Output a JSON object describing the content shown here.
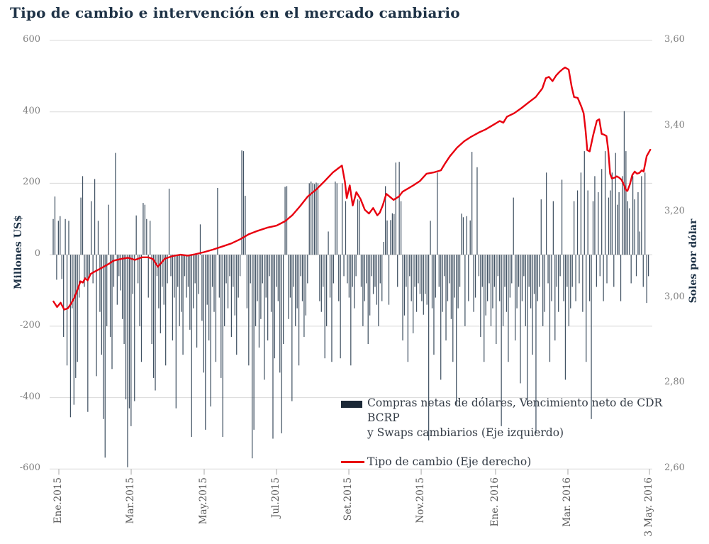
{
  "title": "Tipo de cambio e intervención en el mercado cambiario",
  "colors": {
    "title": "#1e3246",
    "bar": "#2e4053",
    "legend_bar_swatch": "#1b2836",
    "line": "#e8000f",
    "gridline": "#d9d9d9",
    "tick_mark": "#a6a6a6",
    "y_tick_text": "#7f7f7f",
    "x_tick_text": "#595959",
    "legend_text": "#333b45"
  },
  "left_axis": {
    "title": "Millones  US$",
    "ticks": [
      {
        "label": "600",
        "value": 600
      },
      {
        "label": "400",
        "value": 400
      },
      {
        "label": "200",
        "value": 200
      },
      {
        "label": "0",
        "value": 0
      },
      {
        "label": "-200",
        "value": -200
      },
      {
        "label": "-400",
        "value": -400
      },
      {
        "label": "-600",
        "value": -600
      }
    ]
  },
  "right_axis": {
    "title": "Soles por dólar",
    "ticks": [
      {
        "label": "3,60",
        "value": 3.6
      },
      {
        "label": "3,40",
        "value": 3.4
      },
      {
        "label": "3,20",
        "value": 3.2
      },
      {
        "label": "3,00",
        "value": 3.0
      },
      {
        "label": "2,80",
        "value": 2.8
      },
      {
        "label": "2,60",
        "value": 2.6
      }
    ]
  },
  "x_axis": {
    "ticks": [
      {
        "label": "Ene.2015",
        "f": 0.013
      },
      {
        "label": "Mar.2015",
        "f": 0.1336
      },
      {
        "label": "May.2015",
        "f": 0.2553
      },
      {
        "label": "Jul.2015",
        "f": 0.3759
      },
      {
        "label": "Set.2015",
        "f": 0.4965
      },
      {
        "label": "Nov.2015",
        "f": 0.6171
      },
      {
        "label": "Ene. 2016",
        "f": 0.7411
      },
      {
        "label": "Mar. 2016",
        "f": 0.8617
      },
      {
        "label": "3 May. 2016",
        "f": 0.9977
      }
    ]
  },
  "legend": [
    {
      "type": "bar",
      "lines": [
        "Compras netas de dólares, Vencimiento neto de CDR BCRP",
        "y Swaps cambiarios (Eje izquierdo)"
      ]
    },
    {
      "type": "line",
      "lines": [
        "Tipo de cambio (Eje derecho)"
      ]
    }
  ],
  "chart_data": {
    "type": "bar+line",
    "title": "Tipo de cambio e intervención en el mercado cambiario",
    "left_ylim": [
      -600,
      600
    ],
    "right_ylim": [
      2.6,
      3.6
    ],
    "grid": "horizontal, every 200 (left axis)",
    "legend_position": "inside bottom-right",
    "x_range": "Ene.2015 to 3 May. 2016 (daily)",
    "bar_series": {
      "name": "Compras netas de dólares, Vencimiento neto de CDR BCRP y Swaps cambiarios (Eje izquierdo)",
      "axis": "left",
      "unit": "Millones US$",
      "values": [
        100,
        163,
        -70,
        95,
        108,
        -68,
        -230,
        100,
        -310,
        95,
        -455,
        -150,
        -420,
        -345,
        -300,
        -120,
        160,
        220,
        -90,
        -65,
        -440,
        -60,
        150,
        -80,
        212,
        -340,
        95,
        -160,
        -280,
        -460,
        -568,
        -200,
        140,
        -230,
        -320,
        -90,
        285,
        -140,
        -60,
        -100,
        -180,
        -250,
        -405,
        -595,
        -430,
        -480,
        -110,
        -410,
        110,
        -80,
        -200,
        -300,
        145,
        140,
        100,
        -120,
        95,
        -250,
        -345,
        -380,
        -60,
        -150,
        -220,
        -90,
        -140,
        -310,
        -80,
        185,
        -60,
        -240,
        -120,
        -430,
        -90,
        -200,
        -160,
        -280,
        -60,
        -120,
        -90,
        -210,
        -510,
        -150,
        -80,
        -260,
        -110,
        85,
        -185,
        -330,
        -490,
        -140,
        -240,
        -425,
        -90,
        -160,
        -300,
        187,
        -120,
        -345,
        -510,
        -200,
        -80,
        -150,
        -60,
        -230,
        -90,
        -170,
        -280,
        -120,
        -60,
        292,
        290,
        165,
        -150,
        -310,
        -80,
        -570,
        -490,
        -200,
        -130,
        -260,
        -180,
        -80,
        -350,
        -120,
        -240,
        -60,
        -160,
        -515,
        -290,
        -90,
        -130,
        -330,
        -500,
        -250,
        190,
        192,
        -180,
        -120,
        -410,
        -90,
        -200,
        -150,
        -310,
        -60,
        -130,
        -230,
        -170,
        -80,
        200,
        205,
        200,
        198,
        202,
        200,
        -130,
        -160,
        -90,
        -290,
        -200,
        65,
        -120,
        -300,
        -80,
        205,
        200,
        -130,
        -290,
        200,
        -60,
        150,
        -80,
        -120,
        -310,
        -90,
        -150,
        -60,
        155,
        152,
        -90,
        -200,
        -130,
        -80,
        -250,
        -170,
        -60,
        -110,
        -90,
        -140,
        -200,
        -80,
        -130,
        36,
        192,
        96,
        -140,
        97,
        116,
        114,
        258,
        -90,
        260,
        150,
        -240,
        -170,
        -90,
        -300,
        -60,
        -130,
        -220,
        -90,
        -160,
        -80,
        -110,
        -130,
        -168,
        -110,
        -140,
        -520,
        95,
        -150,
        -280,
        -120,
        230,
        -90,
        -350,
        -160,
        -60,
        -240,
        -130,
        -80,
        -180,
        -300,
        -120,
        -420,
        -150,
        -90,
        115,
        105,
        -200,
        108,
        -130,
        96,
        288,
        -160,
        -120,
        245,
        -60,
        -230,
        -90,
        -300,
        -170,
        -130,
        -80,
        -200,
        -150,
        -90,
        -250,
        -60,
        -130,
        -480,
        -200,
        -90,
        -160,
        -300,
        -120,
        -80,
        160,
        -240,
        -150,
        -90,
        -360,
        -130,
        -60,
        -200,
        -420,
        -90,
        -150,
        -280,
        -110,
        -500,
        -130,
        -90,
        155,
        -200,
        -160,
        230,
        -80,
        -300,
        -130,
        150,
        -240,
        -90,
        -160,
        -60,
        210,
        -130,
        -350,
        -90,
        -200,
        -150,
        -90,
        150,
        -130,
        180,
        -80,
        230,
        -160,
        290,
        -300,
        180,
        -130,
        -460,
        150,
        220,
        -90,
        175,
        -60,
        240,
        -130,
        290,
        -80,
        160,
        180,
        230,
        -90,
        285,
        140,
        175,
        -130,
        220,
        402,
        290,
        150,
        130,
        -80,
        220,
        155,
        -60,
        175,
        65,
        220,
        -90,
        230,
        -135,
        -60
      ]
    },
    "line_series": {
      "name": "Tipo de cambio (Eje derecho)",
      "axis": "right",
      "unit": "Soles por dólar",
      "points": [
        [
          0.004,
          2.991
        ],
        [
          0.01,
          2.978
        ],
        [
          0.016,
          2.988
        ],
        [
          0.022,
          2.972
        ],
        [
          0.028,
          2.975
        ],
        [
          0.033,
          2.985
        ],
        [
          0.039,
          3.0
        ],
        [
          0.045,
          3.022
        ],
        [
          0.049,
          3.038
        ],
        [
          0.053,
          3.035
        ],
        [
          0.057,
          3.045
        ],
        [
          0.061,
          3.04
        ],
        [
          0.066,
          3.055
        ],
        [
          0.072,
          3.06
        ],
        [
          0.08,
          3.066
        ],
        [
          0.088,
          3.072
        ],
        [
          0.098,
          3.08
        ],
        [
          0.104,
          3.086
        ],
        [
          0.116,
          3.09
        ],
        [
          0.128,
          3.093
        ],
        [
          0.14,
          3.088
        ],
        [
          0.152,
          3.094
        ],
        [
          0.162,
          3.094
        ],
        [
          0.17,
          3.09
        ],
        [
          0.178,
          3.072
        ],
        [
          0.19,
          3.091
        ],
        [
          0.203,
          3.097
        ],
        [
          0.216,
          3.1
        ],
        [
          0.228,
          3.098
        ],
        [
          0.24,
          3.101
        ],
        [
          0.255,
          3.106
        ],
        [
          0.27,
          3.112
        ],
        [
          0.285,
          3.119
        ],
        [
          0.3,
          3.126
        ],
        [
          0.315,
          3.136
        ],
        [
          0.33,
          3.148
        ],
        [
          0.345,
          3.156
        ],
        [
          0.36,
          3.163
        ],
        [
          0.376,
          3.168
        ],
        [
          0.39,
          3.178
        ],
        [
          0.402,
          3.192
        ],
        [
          0.415,
          3.213
        ],
        [
          0.428,
          3.236
        ],
        [
          0.442,
          3.252
        ],
        [
          0.455,
          3.27
        ],
        [
          0.47,
          3.292
        ],
        [
          0.48,
          3.303
        ],
        [
          0.485,
          3.308
        ],
        [
          0.49,
          3.27
        ],
        [
          0.493,
          3.232
        ],
        [
          0.498,
          3.262
        ],
        [
          0.503,
          3.215
        ],
        [
          0.509,
          3.246
        ],
        [
          0.516,
          3.23
        ],
        [
          0.523,
          3.205
        ],
        [
          0.53,
          3.196
        ],
        [
          0.537,
          3.209
        ],
        [
          0.544,
          3.192
        ],
        [
          0.548,
          3.198
        ],
        [
          0.553,
          3.215
        ],
        [
          0.559,
          3.242
        ],
        [
          0.571,
          3.228
        ],
        [
          0.58,
          3.236
        ],
        [
          0.586,
          3.247
        ],
        [
          0.603,
          3.261
        ],
        [
          0.615,
          3.272
        ],
        [
          0.626,
          3.289
        ],
        [
          0.638,
          3.292
        ],
        [
          0.65,
          3.297
        ],
        [
          0.657,
          3.313
        ],
        [
          0.665,
          3.33
        ],
        [
          0.677,
          3.35
        ],
        [
          0.689,
          3.365
        ],
        [
          0.7,
          3.375
        ],
        [
          0.713,
          3.385
        ],
        [
          0.724,
          3.392
        ],
        [
          0.736,
          3.402
        ],
        [
          0.748,
          3.412
        ],
        [
          0.754,
          3.408
        ],
        [
          0.76,
          3.422
        ],
        [
          0.772,
          3.43
        ],
        [
          0.784,
          3.442
        ],
        [
          0.796,
          3.455
        ],
        [
          0.808,
          3.468
        ],
        [
          0.819,
          3.488
        ],
        [
          0.825,
          3.512
        ],
        [
          0.83,
          3.515
        ],
        [
          0.836,
          3.505
        ],
        [
          0.842,
          3.518
        ],
        [
          0.848,
          3.527
        ],
        [
          0.853,
          3.533
        ],
        [
          0.857,
          3.537
        ],
        [
          0.863,
          3.532
        ],
        [
          0.868,
          3.492
        ],
        [
          0.872,
          3.468
        ],
        [
          0.878,
          3.466
        ],
        [
          0.884,
          3.446
        ],
        [
          0.888,
          3.43
        ],
        [
          0.891,
          3.392
        ],
        [
          0.894,
          3.344
        ],
        [
          0.898,
          3.341
        ],
        [
          0.904,
          3.38
        ],
        [
          0.91,
          3.413
        ],
        [
          0.914,
          3.416
        ],
        [
          0.918,
          3.382
        ],
        [
          0.922,
          3.38
        ],
        [
          0.926,
          3.377
        ],
        [
          0.929,
          3.344
        ],
        [
          0.932,
          3.289
        ],
        [
          0.935,
          3.278
        ],
        [
          0.94,
          3.28
        ],
        [
          0.943,
          3.283
        ],
        [
          0.947,
          3.28
        ],
        [
          0.951,
          3.275
        ],
        [
          0.955,
          3.264
        ],
        [
          0.959,
          3.25
        ],
        [
          0.961,
          3.249
        ],
        [
          0.965,
          3.264
        ],
        [
          0.969,
          3.286
        ],
        [
          0.973,
          3.294
        ],
        [
          0.977,
          3.289
        ],
        [
          0.981,
          3.291
        ],
        [
          0.985,
          3.297
        ],
        [
          0.988,
          3.294
        ],
        [
          0.993,
          3.33
        ],
        [
          0.999,
          3.345
        ]
      ]
    }
  }
}
